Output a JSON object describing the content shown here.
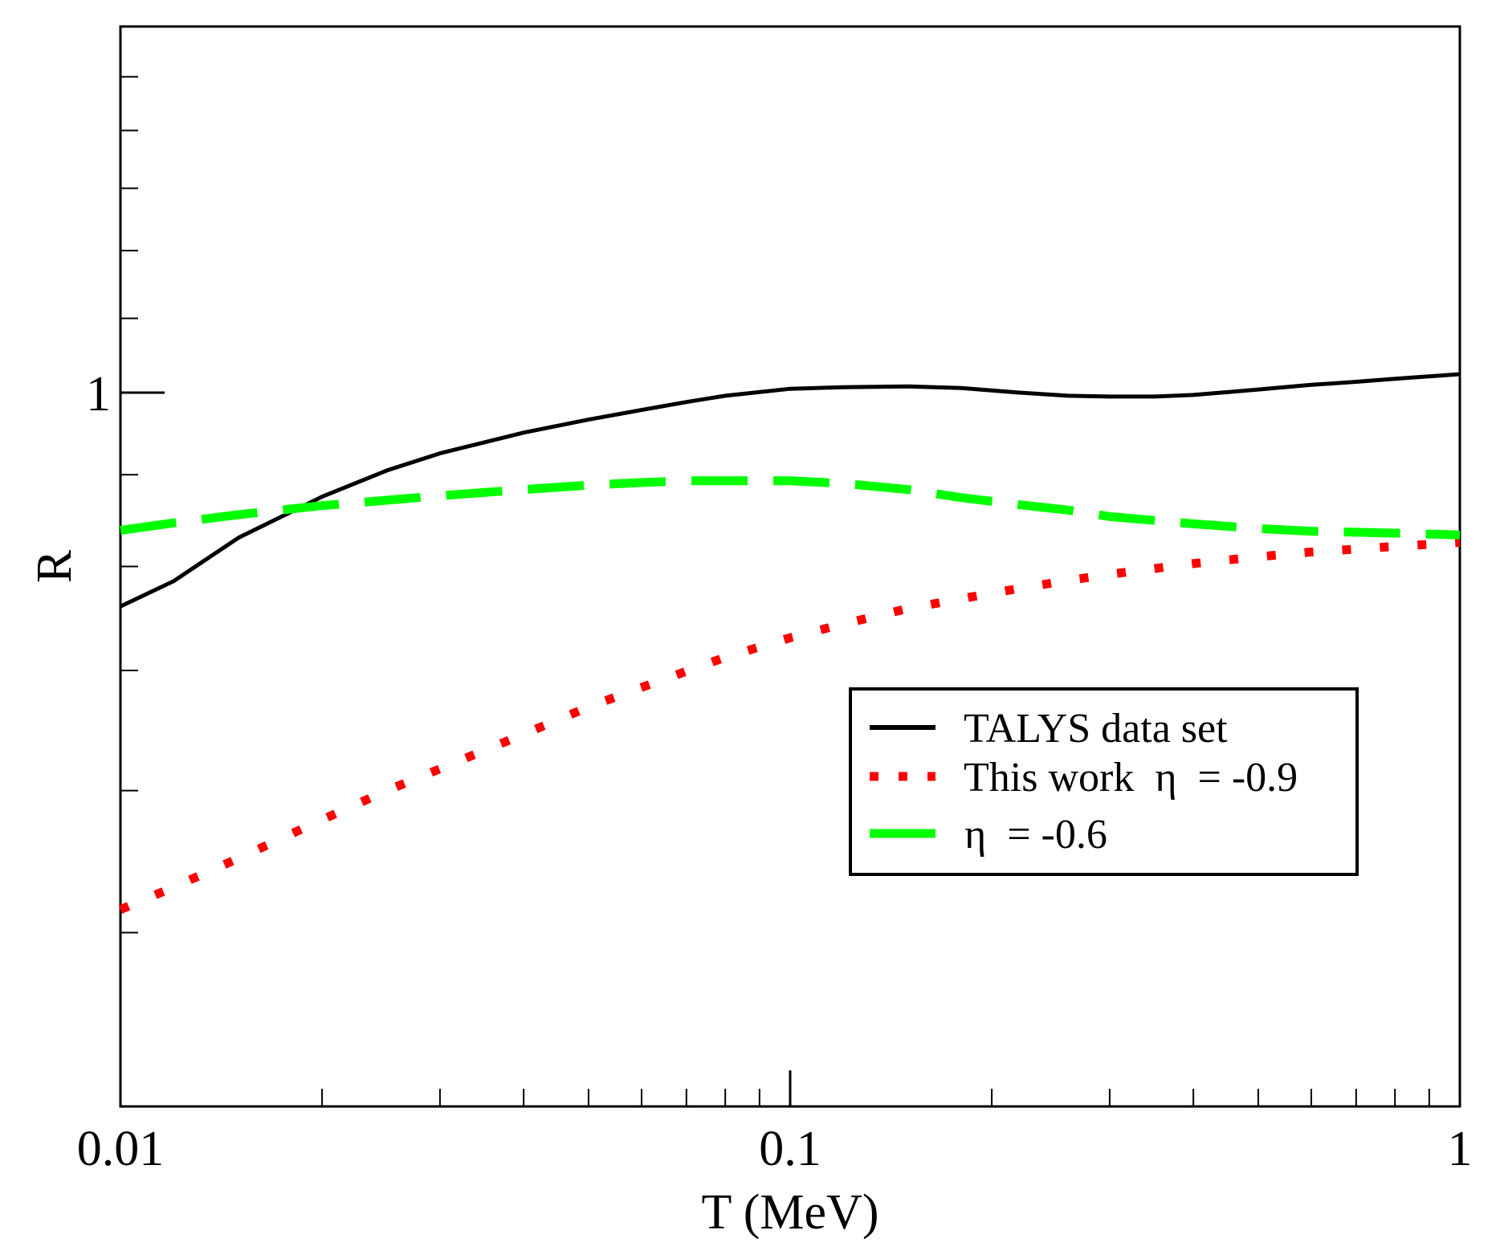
{
  "chart_data": {
    "type": "line",
    "title": "",
    "xlabel": "T (MeV)",
    "ylabel": "R",
    "xscale": "log",
    "yscale": "log",
    "xlim": [
      0.01,
      1
    ],
    "ylim": [
      0.4,
      1.6
    ],
    "x_ticks": [
      {
        "value": 0.01,
        "label": "0.01"
      },
      {
        "value": 0.1,
        "label": "0.1"
      },
      {
        "value": 1,
        "label": "1"
      }
    ],
    "y_ticks": [
      {
        "value": 1,
        "label": "1"
      }
    ],
    "legend_position": "center-right",
    "series": [
      {
        "name": "TALYS data set",
        "style": "solid",
        "color": "#000000",
        "x": [
          0.01,
          0.012,
          0.015,
          0.02,
          0.025,
          0.03,
          0.04,
          0.05,
          0.06,
          0.07,
          0.08,
          0.1,
          0.12,
          0.15,
          0.18,
          0.22,
          0.26,
          0.3,
          0.35,
          0.4,
          0.5,
          0.6,
          0.7,
          0.8,
          1.0
        ],
        "y": [
          0.76,
          0.785,
          0.83,
          0.875,
          0.905,
          0.925,
          0.95,
          0.966,
          0.978,
          0.988,
          0.996,
          1.005,
          1.007,
          1.008,
          1.006,
          1.0,
          0.996,
          0.995,
          0.995,
          0.997,
          1.004,
          1.01,
          1.014,
          1.018,
          1.024
        ]
      },
      {
        "name": "This work",
        "style": "dotted",
        "color": "#ff0000",
        "x": [
          0.01,
          0.012,
          0.015,
          0.02,
          0.025,
          0.03,
          0.04,
          0.05,
          0.06,
          0.08,
          0.1,
          0.12,
          0.15,
          0.2,
          0.25,
          0.3,
          0.4,
          0.5,
          0.6,
          0.7,
          0.8,
          1.0
        ],
        "y": [
          0.515,
          0.53,
          0.55,
          0.578,
          0.6,
          0.617,
          0.645,
          0.668,
          0.685,
          0.712,
          0.73,
          0.743,
          0.758,
          0.773,
          0.784,
          0.792,
          0.803,
          0.81,
          0.815,
          0.818,
          0.821,
          0.825
        ]
      },
      {
        "name": "η = -0.6",
        "style": "dashed",
        "color": "#00ff00",
        "x": [
          0.01,
          0.012,
          0.015,
          0.02,
          0.025,
          0.03,
          0.04,
          0.05,
          0.06,
          0.07,
          0.08,
          0.1,
          0.12,
          0.15,
          0.18,
          0.22,
          0.26,
          0.3,
          0.4,
          0.5,
          0.6,
          0.8,
          1.0
        ],
        "y": [
          0.838,
          0.846,
          0.855,
          0.865,
          0.871,
          0.876,
          0.883,
          0.888,
          0.891,
          0.893,
          0.893,
          0.893,
          0.89,
          0.883,
          0.874,
          0.866,
          0.86,
          0.853,
          0.845,
          0.84,
          0.837,
          0.835,
          0.833
        ]
      }
    ],
    "legend": {
      "entries": [
        {
          "label": "TALYS data set",
          "style": "solid",
          "color": "#000000"
        },
        {
          "label": "This work  η  = -0.9",
          "style": "dotted",
          "color": "#ff0000"
        },
        {
          "label": " η  = -0.6",
          "style": "dashed",
          "color": "#00ff00"
        }
      ]
    }
  }
}
